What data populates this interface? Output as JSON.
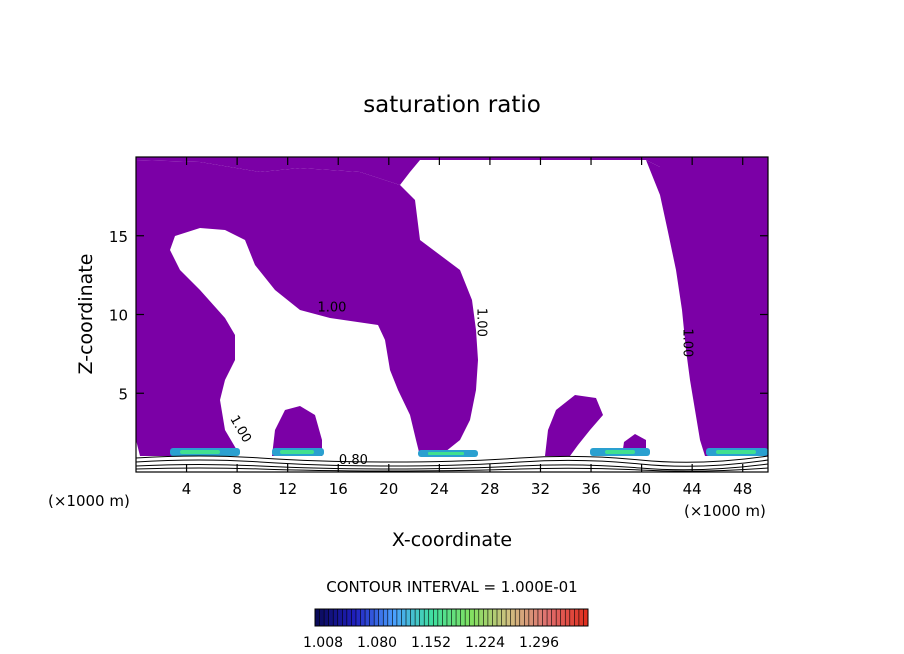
{
  "chart_data": {
    "type": "contour",
    "title": "saturation ratio",
    "xlabel": "X-coordinate",
    "ylabel": "Z-coordinate",
    "x_unit_left": "(×1000 m)",
    "x_unit_right": "(×1000 m)",
    "xlim": [
      0,
      50
    ],
    "ylim": [
      0,
      20
    ],
    "x_ticks": [
      4,
      8,
      12,
      16,
      20,
      24,
      28,
      32,
      36,
      40,
      44,
      48
    ],
    "y_ticks": [
      5,
      10,
      15
    ],
    "contour_labels": [
      {
        "text": "1.00",
        "x": 15.5,
        "y": 10.2,
        "rotate": 0
      },
      {
        "text": "1.00",
        "x": 27.0,
        "y": 9.5,
        "rotate": 90
      },
      {
        "text": "1.00",
        "x": 43.3,
        "y": 8.2,
        "rotate": 90
      },
      {
        "text": "1.00",
        "x": 8.0,
        "y": 2.6,
        "rotate": 60
      },
      {
        "text": "0.80",
        "x": 17.2,
        "y": 0.5,
        "rotate": 0
      }
    ],
    "contour_interval_text": "CONTOUR INTERVAL = 1.000E-01",
    "colorbar": {
      "labels": [
        "1.008",
        "1.080",
        "1.152",
        "1.224",
        "1.296"
      ],
      "min": 1.008,
      "max": 1.35,
      "colors": [
        "#0a0a5a",
        "#2020c0",
        "#4aa0ff",
        "#40e0a0",
        "#80e060",
        "#d0c080",
        "#e07070",
        "#e03020"
      ]
    },
    "fill_color": "#7b00a6",
    "fill_regions_meaning": "saturation ratio >= 1.00 shaded"
  }
}
